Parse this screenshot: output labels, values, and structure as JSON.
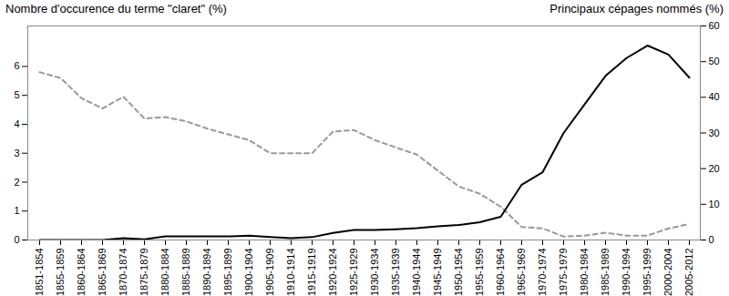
{
  "chart_data": {
    "type": "line",
    "categories": [
      "1851-1854",
      "1855-1859",
      "1860-1864",
      "1865-1869",
      "1870-1874",
      "1875-1879",
      "1880-1884",
      "1885-1889",
      "1890-1894",
      "1895-1899",
      "1900-1904",
      "1905-1909",
      "1910-1914",
      "1915-1919",
      "1920-1924",
      "1925-1929",
      "1930-1934",
      "1935-1939",
      "1940-1944",
      "1945-1949",
      "1950-1954",
      "1955-1959",
      "1960-1964",
      "1965-1969",
      "1970-1974",
      "1975-1979",
      "1980-1984",
      "1985-1989",
      "1990-1994",
      "1995-1999",
      "2000-2004",
      "2005-2012"
    ],
    "series": [
      {
        "name": "Nombre d'occurence du terme \"claret\" (%)",
        "color": "#999999",
        "line_style": "dashed",
        "values": [
          5.8,
          5.6,
          4.9,
          4.55,
          4.95,
          4.2,
          4.25,
          4.1,
          3.85,
          3.65,
          3.45,
          3.0,
          3.0,
          3.0,
          3.75,
          3.8,
          3.45,
          3.2,
          2.95,
          2.4,
          1.85,
          1.6,
          1.15,
          0.45,
          0.4,
          0.12,
          0.15,
          0.25,
          0.15,
          0.15,
          0.4,
          0.55
        ]
      },
      {
        "name": "Principaux cépages nommés (%)",
        "color": "#000000",
        "line_style": "solid",
        "axis": "y2",
        "values": [
          0,
          0,
          0,
          0,
          0.5,
          0.2,
          1,
          1,
          1,
          1,
          1.2,
          0.8,
          0.5,
          0.8,
          2,
          2.8,
          2.8,
          3,
          3.3,
          3.8,
          4.2,
          5,
          6.5,
          15.5,
          19,
          30,
          38,
          46,
          51,
          54.5,
          52,
          45.5
        ]
      }
    ],
    "ylim": [
      0,
      7.4
    ],
    "yticks": [
      0,
      1,
      2,
      3,
      4,
      5,
      6
    ],
    "y2lim": [
      0,
      60
    ],
    "y2ticks": [
      0,
      10,
      20,
      30,
      40,
      50,
      60
    ],
    "grid": false
  }
}
